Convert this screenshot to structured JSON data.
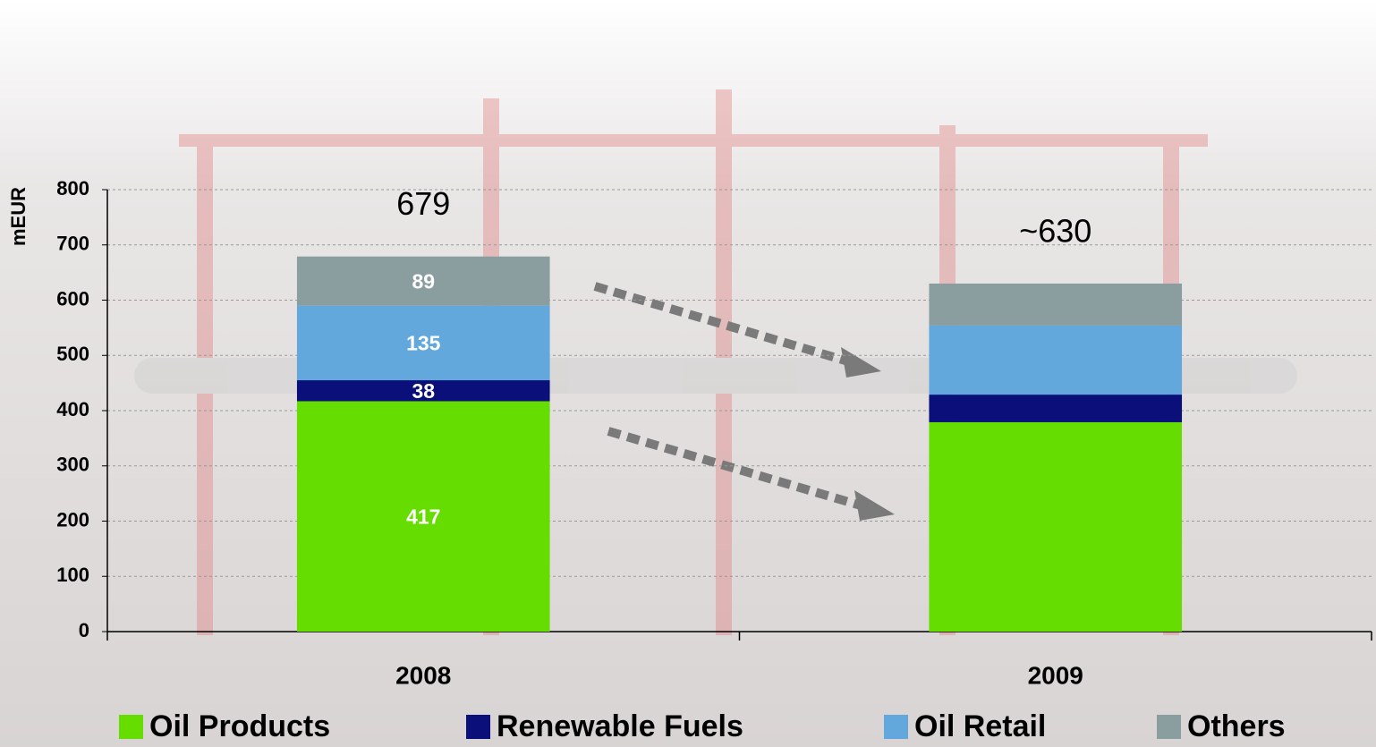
{
  "chart_data": {
    "type": "stacked_bar",
    "y_label": "mEUR",
    "categories": [
      "2008",
      "2009"
    ],
    "series": [
      {
        "name": "Oil Products",
        "color": "#66dd00",
        "values": [
          417,
          379
        ],
        "value_labels": [
          "417",
          null
        ]
      },
      {
        "name": "Renewable Fuels",
        "color": "#0a0f7a",
        "values": [
          38,
          50
        ],
        "value_labels": [
          "38",
          null
        ]
      },
      {
        "name": "Oil Retail",
        "color": "#62a8dc",
        "values": [
          135,
          125
        ],
        "value_labels": [
          "135",
          null
        ]
      },
      {
        "name": "Others",
        "color": "#8a9ea0",
        "values": [
          89,
          76
        ],
        "value_labels": [
          "89",
          null
        ]
      }
    ],
    "annotations": [
      "679",
      "~630"
    ],
    "ylim": [
      0,
      800
    ],
    "yticks": [
      0,
      100,
      200,
      300,
      400,
      500,
      600,
      700,
      800
    ],
    "grid": true
  }
}
